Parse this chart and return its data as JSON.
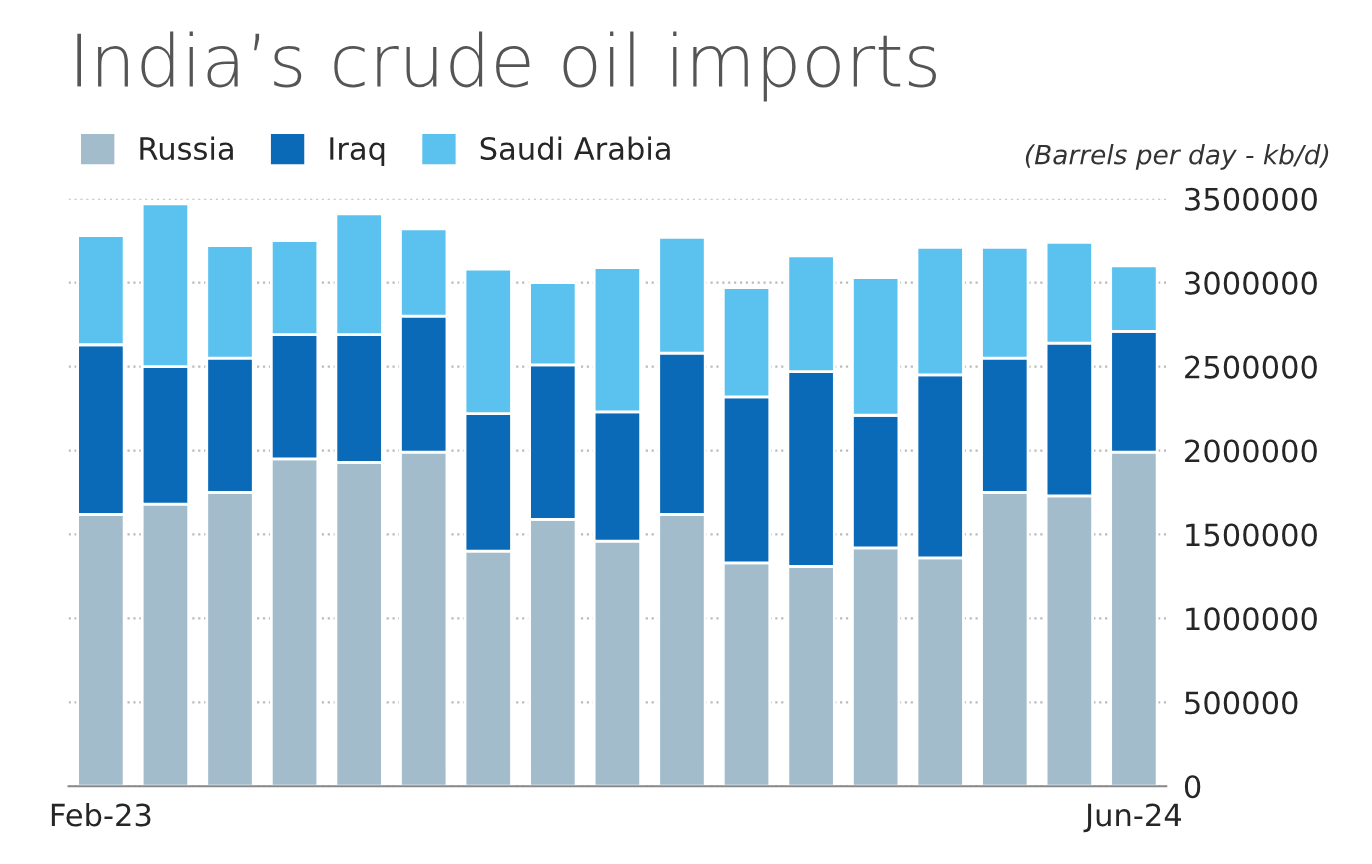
{
  "chart_data": {
    "type": "bar",
    "title": "India’s crude oil imports",
    "annotations": [
      "(Barrels per day - kb/d)"
    ],
    "categories": [
      "Feb-23",
      null,
      null,
      null,
      null,
      null,
      null,
      null,
      null,
      null,
      null,
      null,
      null,
      null,
      null,
      null,
      "Jun-24"
    ],
    "stacked": true,
    "series": [
      {
        "name": "Russia",
        "color": "#a3bccc",
        "values": [
          1620000,
          1680000,
          1750000,
          1950000,
          1930000,
          1990000,
          1400000,
          1590000,
          1460000,
          1620000,
          1330000,
          1310000,
          1420000,
          1360000,
          1750000,
          1730000,
          1990000
        ]
      },
      {
        "name": "Iraq",
        "color": "#0a6ab8",
        "values": [
          1010000,
          820000,
          800000,
          740000,
          760000,
          810000,
          820000,
          920000,
          770000,
          960000,
          990000,
          1160000,
          790000,
          1090000,
          800000,
          910000,
          720000
        ]
      },
      {
        "name": "Saudi Arabia",
        "color": "#5bc2ef",
        "values": [
          650000,
          970000,
          670000,
          560000,
          720000,
          520000,
          860000,
          490000,
          860000,
          690000,
          650000,
          690000,
          820000,
          760000,
          660000,
          600000,
          390000
        ]
      }
    ],
    "ylim": [
      0,
      3500000
    ],
    "yticks": [
      0,
      500000,
      1000000,
      1500000,
      2000000,
      2500000,
      3000000,
      3500000
    ],
    "grid": "y",
    "legend": "top left"
  }
}
